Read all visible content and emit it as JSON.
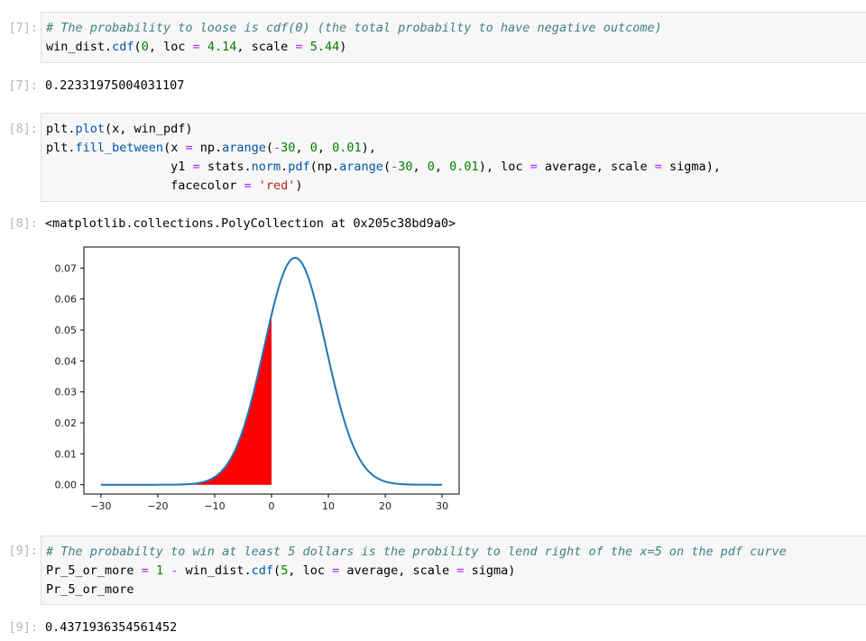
{
  "cells": [
    {
      "in_prompt": "[7]:",
      "lines": [
        [
          {
            "t": "cm",
            "v": "# The probability to loose is cdf(0) (the total probabilty to have negative outcome)"
          }
        ],
        [
          {
            "t": "",
            "v": "win_dist."
          },
          {
            "t": "fn",
            "v": "cdf"
          },
          {
            "t": "",
            "v": "("
          },
          {
            "t": "nu",
            "v": "0"
          },
          {
            "t": "",
            "v": ", loc "
          },
          {
            "t": "op",
            "v": "="
          },
          {
            "t": "",
            "v": " "
          },
          {
            "t": "nu",
            "v": "4.14"
          },
          {
            "t": "",
            "v": ", scale "
          },
          {
            "t": "op",
            "v": "="
          },
          {
            "t": "",
            "v": " "
          },
          {
            "t": "nu",
            "v": "5.44"
          },
          {
            "t": "",
            "v": ")"
          }
        ]
      ],
      "out_prompt": "[7]:",
      "output": "0.22331975004031107"
    },
    {
      "in_prompt": "[8]:",
      "lines": [
        [
          {
            "t": "",
            "v": "plt."
          },
          {
            "t": "fn",
            "v": "plot"
          },
          {
            "t": "",
            "v": "(x, win_pdf)"
          }
        ],
        [
          {
            "t": "",
            "v": "plt."
          },
          {
            "t": "fn",
            "v": "fill_between"
          },
          {
            "t": "",
            "v": "(x "
          },
          {
            "t": "op",
            "v": "="
          },
          {
            "t": "",
            "v": " np."
          },
          {
            "t": "fn",
            "v": "arange"
          },
          {
            "t": "",
            "v": "("
          },
          {
            "t": "op",
            "v": "-"
          },
          {
            "t": "nu",
            "v": "30"
          },
          {
            "t": "",
            "v": ", "
          },
          {
            "t": "nu",
            "v": "0"
          },
          {
            "t": "",
            "v": ", "
          },
          {
            "t": "nu",
            "v": "0.01"
          },
          {
            "t": "",
            "v": "),"
          }
        ],
        [
          {
            "t": "",
            "v": "                 y1 "
          },
          {
            "t": "op",
            "v": "="
          },
          {
            "t": "",
            "v": " stats."
          },
          {
            "t": "fn",
            "v": "norm"
          },
          {
            "t": "",
            "v": "."
          },
          {
            "t": "fn",
            "v": "pdf"
          },
          {
            "t": "",
            "v": "(np."
          },
          {
            "t": "fn",
            "v": "arange"
          },
          {
            "t": "",
            "v": "("
          },
          {
            "t": "op",
            "v": "-"
          },
          {
            "t": "nu",
            "v": "30"
          },
          {
            "t": "",
            "v": ", "
          },
          {
            "t": "nu",
            "v": "0"
          },
          {
            "t": "",
            "v": ", "
          },
          {
            "t": "nu",
            "v": "0.01"
          },
          {
            "t": "",
            "v": "), loc "
          },
          {
            "t": "op",
            "v": "="
          },
          {
            "t": "",
            "v": " average, scale "
          },
          {
            "t": "op",
            "v": "="
          },
          {
            "t": "",
            "v": " sigma),"
          }
        ],
        [
          {
            "t": "",
            "v": "                 facecolor "
          },
          {
            "t": "op",
            "v": "="
          },
          {
            "t": "",
            "v": " "
          },
          {
            "t": "st",
            "v": "'red'"
          },
          {
            "t": "",
            "v": ")"
          }
        ]
      ],
      "out_prompt": "[8]:",
      "output": "<matplotlib.collections.PolyCollection at 0x205c38bd9a0>"
    },
    {
      "in_prompt": "[9]:",
      "lines": [
        [
          {
            "t": "cm",
            "v": "# The probabilty to win at least 5 dollars is the probility to lend right of the x=5 on the pdf curve"
          }
        ],
        [
          {
            "t": "",
            "v": "Pr_5_or_more "
          },
          {
            "t": "op",
            "v": "="
          },
          {
            "t": "",
            "v": " "
          },
          {
            "t": "nu",
            "v": "1"
          },
          {
            "t": "",
            "v": " "
          },
          {
            "t": "op",
            "v": "-"
          },
          {
            "t": "",
            "v": " win_dist."
          },
          {
            "t": "fn",
            "v": "cdf"
          },
          {
            "t": "",
            "v": "("
          },
          {
            "t": "nu",
            "v": "5"
          },
          {
            "t": "",
            "v": ", loc "
          },
          {
            "t": "op",
            "v": "="
          },
          {
            "t": "",
            "v": " average, scale "
          },
          {
            "t": "op",
            "v": "="
          },
          {
            "t": "",
            "v": " sigma)"
          }
        ],
        [
          {
            "t": "",
            "v": "Pr_5_or_more"
          }
        ]
      ],
      "out_prompt": "[9]:",
      "output": "0.4371936354561452"
    }
  ],
  "chart_data": {
    "type": "line",
    "series": [
      {
        "distribution": "normal",
        "loc": 4.14,
        "scale": 5.44,
        "x_range": [
          -30,
          30
        ],
        "color": "#1f77b4"
      }
    ],
    "fill": {
      "x_range": [
        -30,
        0
      ],
      "color": "#ff0000"
    },
    "xlim": [
      -33,
      33
    ],
    "ylim": [
      -0.003,
      0.0768
    ],
    "x_ticks": [
      -30,
      -20,
      -10,
      0,
      10,
      20,
      30
    ],
    "y_ticks": [
      0.0,
      0.01,
      0.02,
      0.03,
      0.04,
      0.05,
      0.06,
      0.07
    ],
    "x_tick_labels": [
      "−30",
      "−20",
      "−10",
      "0",
      "10",
      "20",
      "30"
    ],
    "y_tick_labels": [
      "0.00",
      "0.01",
      "0.02",
      "0.03",
      "0.04",
      "0.05",
      "0.06",
      "0.07"
    ],
    "grid": false
  }
}
